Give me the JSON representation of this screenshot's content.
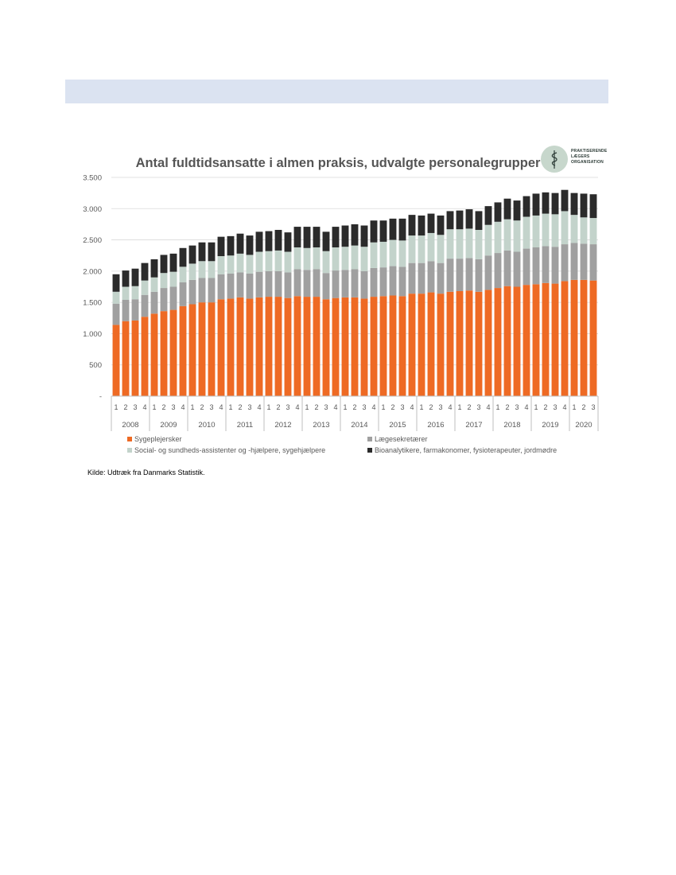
{
  "source_note": "Kilde: Udtræk fra Danmarks Statistik.",
  "logo": {
    "lines": [
      "PRAKTISERENDE",
      "LÆGERS",
      "ORGANISATION"
    ]
  },
  "colors": {
    "sygeplejersker": "#ee6a24",
    "laegesekretaerer": "#a0a0a0",
    "social": "#c3d3cb",
    "bioanalytikere": "#2b2b2b",
    "header_band": "#dbe3f1"
  },
  "chart_data": {
    "type": "bar",
    "stacked": true,
    "title": "Antal fuldtidsansatte i almen praksis, udvalgte personalegrupper",
    "ylim": [
      0,
      3500
    ],
    "yticks": [
      0,
      500,
      1000,
      1500,
      2000,
      2500,
      3000,
      3500
    ],
    "ytick_labels": [
      "-",
      "500",
      "1.000",
      "1.500",
      "2.000",
      "2.500",
      "3.000",
      "3.500"
    ],
    "grid": true,
    "legend": "bottom",
    "categories": [
      "2008 K1",
      "2008 K2",
      "2008 K3",
      "2008 K4",
      "2009 K1",
      "2009 K2",
      "2009 K3",
      "2009 K4",
      "2010 K1",
      "2010 K2",
      "2010 K3",
      "2010 K4",
      "2011 K1",
      "2011 K2",
      "2011 K3",
      "2011 K4",
      "2012 K1",
      "2012 K2",
      "2012 K3",
      "2012 K4",
      "2013 K1",
      "2013 K2",
      "2013 K3",
      "2013 K4",
      "2014 K1",
      "2014 K2",
      "2014 K3",
      "2014 K4",
      "2015 K1",
      "2015 K2",
      "2015 K3",
      "2015 K4",
      "2016 K1",
      "2016 K2",
      "2016 K3",
      "2016 K4",
      "2017 K1",
      "2017 K2",
      "2017 K3",
      "2017 K4",
      "2018 K1",
      "2018 K2",
      "2018 K3",
      "2018 K4",
      "2019 K1",
      "2019 K2",
      "2019 K3",
      "2019 K4",
      "2020 K1",
      "2020 K2",
      "2020 K3"
    ],
    "quarter_labels": [
      "1",
      "2",
      "3",
      "4",
      "1",
      "2",
      "3",
      "4",
      "1",
      "2",
      "3",
      "4",
      "1",
      "2",
      "3",
      "4",
      "1",
      "2",
      "3",
      "4",
      "1",
      "2",
      "3",
      "4",
      "1",
      "2",
      "3",
      "4",
      "1",
      "2",
      "3",
      "4",
      "1",
      "2",
      "3",
      "4",
      "1",
      "2",
      "3",
      "4",
      "1",
      "2",
      "3",
      "4",
      "1",
      "2",
      "3",
      "4",
      "1",
      "2",
      "3"
    ],
    "years": [
      {
        "label": "2008",
        "quarters": 4
      },
      {
        "label": "2009",
        "quarters": 4
      },
      {
        "label": "2010",
        "quarters": 4
      },
      {
        "label": "2011",
        "quarters": 4
      },
      {
        "label": "2012",
        "quarters": 4
      },
      {
        "label": "2013",
        "quarters": 4
      },
      {
        "label": "2014",
        "quarters": 4
      },
      {
        "label": "2015",
        "quarters": 4
      },
      {
        "label": "2016",
        "quarters": 4
      },
      {
        "label": "2017",
        "quarters": 4
      },
      {
        "label": "2018",
        "quarters": 4
      },
      {
        "label": "2019",
        "quarters": 4
      },
      {
        "label": "2020",
        "quarters": 3
      }
    ],
    "series": [
      {
        "name": "Sygeplejersker",
        "color": "#ee6a24",
        "values": [
          1140,
          1200,
          1210,
          1270,
          1320,
          1360,
          1380,
          1440,
          1470,
          1500,
          1500,
          1550,
          1560,
          1580,
          1560,
          1580,
          1590,
          1590,
          1570,
          1600,
          1590,
          1590,
          1550,
          1570,
          1580,
          1580,
          1560,
          1590,
          1600,
          1610,
          1600,
          1640,
          1640,
          1660,
          1640,
          1670,
          1680,
          1690,
          1670,
          1700,
          1730,
          1760,
          1750,
          1780,
          1790,
          1810,
          1800,
          1840,
          1860,
          1860,
          1850
        ]
      },
      {
        "name": "Lægesekretærer",
        "color": "#a0a0a0",
        "values": [
          340,
          340,
          340,
          350,
          350,
          370,
          370,
          380,
          390,
          390,
          390,
          400,
          400,
          400,
          400,
          410,
          410,
          410,
          410,
          430,
          430,
          440,
          420,
          440,
          440,
          450,
          440,
          460,
          460,
          470,
          470,
          490,
          490,
          500,
          490,
          530,
          520,
          520,
          520,
          550,
          560,
          570,
          560,
          580,
          590,
          590,
          590,
          590,
          590,
          580,
          580
        ]
      },
      {
        "name": "Social- og sundheds-assistenter og -hjælpere, sygehjælpere",
        "color": "#c3d3cb",
        "values": [
          190,
          210,
          210,
          230,
          230,
          240,
          240,
          250,
          260,
          270,
          270,
          290,
          290,
          300,
          300,
          320,
          320,
          330,
          330,
          350,
          350,
          350,
          350,
          370,
          370,
          380,
          390,
          410,
          410,
          420,
          420,
          440,
          440,
          450,
          450,
          470,
          470,
          470,
          470,
          490,
          500,
          500,
          500,
          510,
          510,
          520,
          520,
          530,
          450,
          420,
          420
        ]
      },
      {
        "name": "Bioanalytikere, farmakonomer, fysioterapeuter, jordmødre",
        "color": "#2b2b2b",
        "values": [
          280,
          260,
          280,
          280,
          290,
          290,
          290,
          300,
          290,
          300,
          300,
          310,
          310,
          320,
          310,
          320,
          320,
          330,
          310,
          330,
          340,
          330,
          310,
          330,
          340,
          340,
          340,
          350,
          340,
          340,
          350,
          330,
          320,
          310,
          310,
          290,
          300,
          310,
          300,
          300,
          310,
          330,
          320,
          330,
          350,
          340,
          340,
          340,
          350,
          380,
          380
        ]
      }
    ]
  }
}
